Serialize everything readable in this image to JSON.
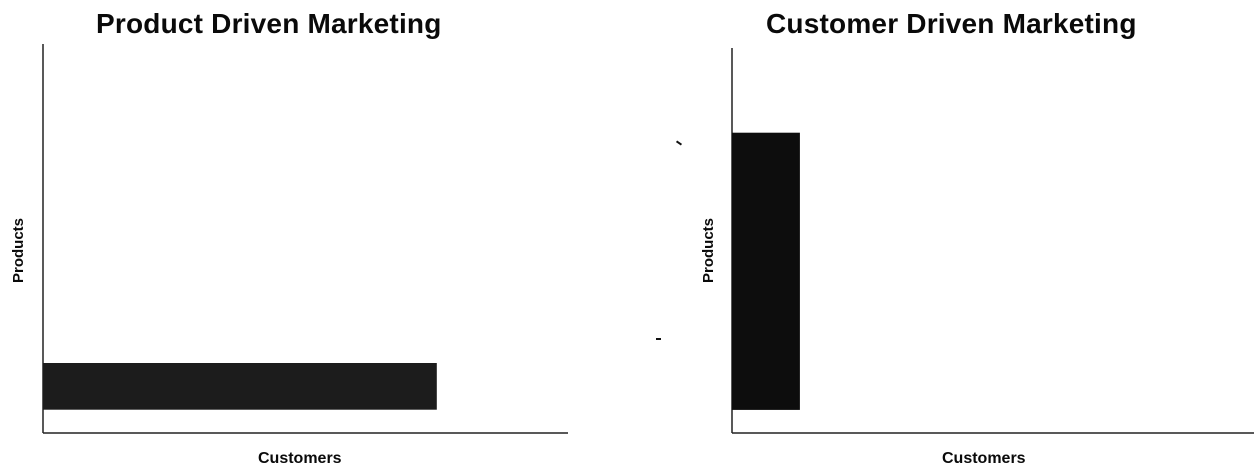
{
  "chart_data": [
    {
      "type": "bar",
      "orientation": "horizontal",
      "title": "Product Driven Marketing",
      "xlabel": "Customers",
      "ylabel": "Products",
      "xlim": [
        0,
        1
      ],
      "ylim": [
        0,
        1
      ],
      "bars": [
        {
          "start": 0.0,
          "extent": 0.75,
          "low": 0.06,
          "high": 0.18
        }
      ],
      "grid": false,
      "legend": "none",
      "bar_color": "#1c1c1c"
    },
    {
      "type": "bar",
      "orientation": "vertical",
      "title": "Customer Driven Marketing",
      "xlabel": "Customers",
      "ylabel": "Products",
      "xlim": [
        0,
        1
      ],
      "ylim": [
        0,
        1
      ],
      "bars": [
        {
          "start": 0.06,
          "extent": 0.72,
          "low": 0.0,
          "high": 0.13
        }
      ],
      "grid": false,
      "legend": "none",
      "bar_color": "#0d0d0d"
    }
  ]
}
